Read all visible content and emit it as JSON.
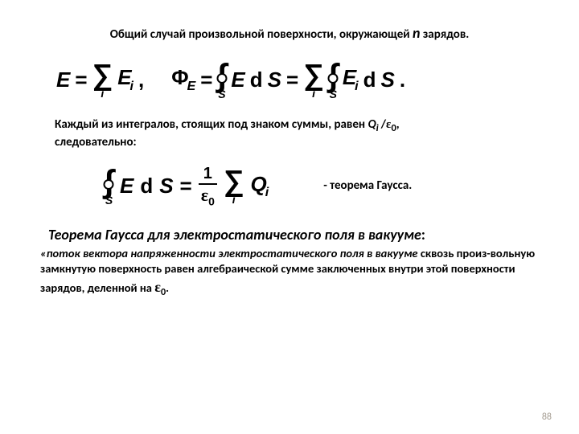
{
  "heading": {
    "pre": "Общий случай произвольной поверхности, окружающей ",
    "n": "n",
    "post": " зарядов."
  },
  "eq1": {
    "E": "E",
    "eq": "=",
    "Ei": "E",
    "i": "i",
    "comma": ","
  },
  "eq2": {
    "Phi": "Φ",
    "Esub": "E",
    "eq": "=",
    "E": "E",
    "dS": "d",
    "S": "S",
    "eq2": "=",
    "Ei": "E",
    "i": "i",
    "dS2": "d",
    "S2": "S",
    "dot": "."
  },
  "line2": {
    "a": "Каждый из интегралов, стоящих под знаком суммы, равен ",
    "qi": "Q",
    "i": "i ",
    "slash": "/",
    "eps": "ε",
    "zero": "0",
    "comma": ",",
    "b": "следовательно:"
  },
  "eq3": {
    "E": "E",
    "dS": "d",
    "S": "S",
    "eq": "=",
    "num": "1",
    "eps": "ε",
    "zero": "0",
    "Q": "Q",
    "i": "i"
  },
  "caption2": "- теорема Гаусса.",
  "theoremTitle": "Теорема Гаусса для электростатического поля в вакууме",
  "colon": ":",
  "body": {
    "a": "«поток вектора напряженности электростатического поля в вакууме",
    "b": " сквозь произ-вольную замкнутую поверхность равен алгебраической сумме заключенных внутри этой поверхности зарядов, деленной на ",
    "eps": "ε",
    "zero": "0",
    "dot": "."
  },
  "pagenum": "88",
  "sigma_i": "i",
  "oint_S": "S"
}
